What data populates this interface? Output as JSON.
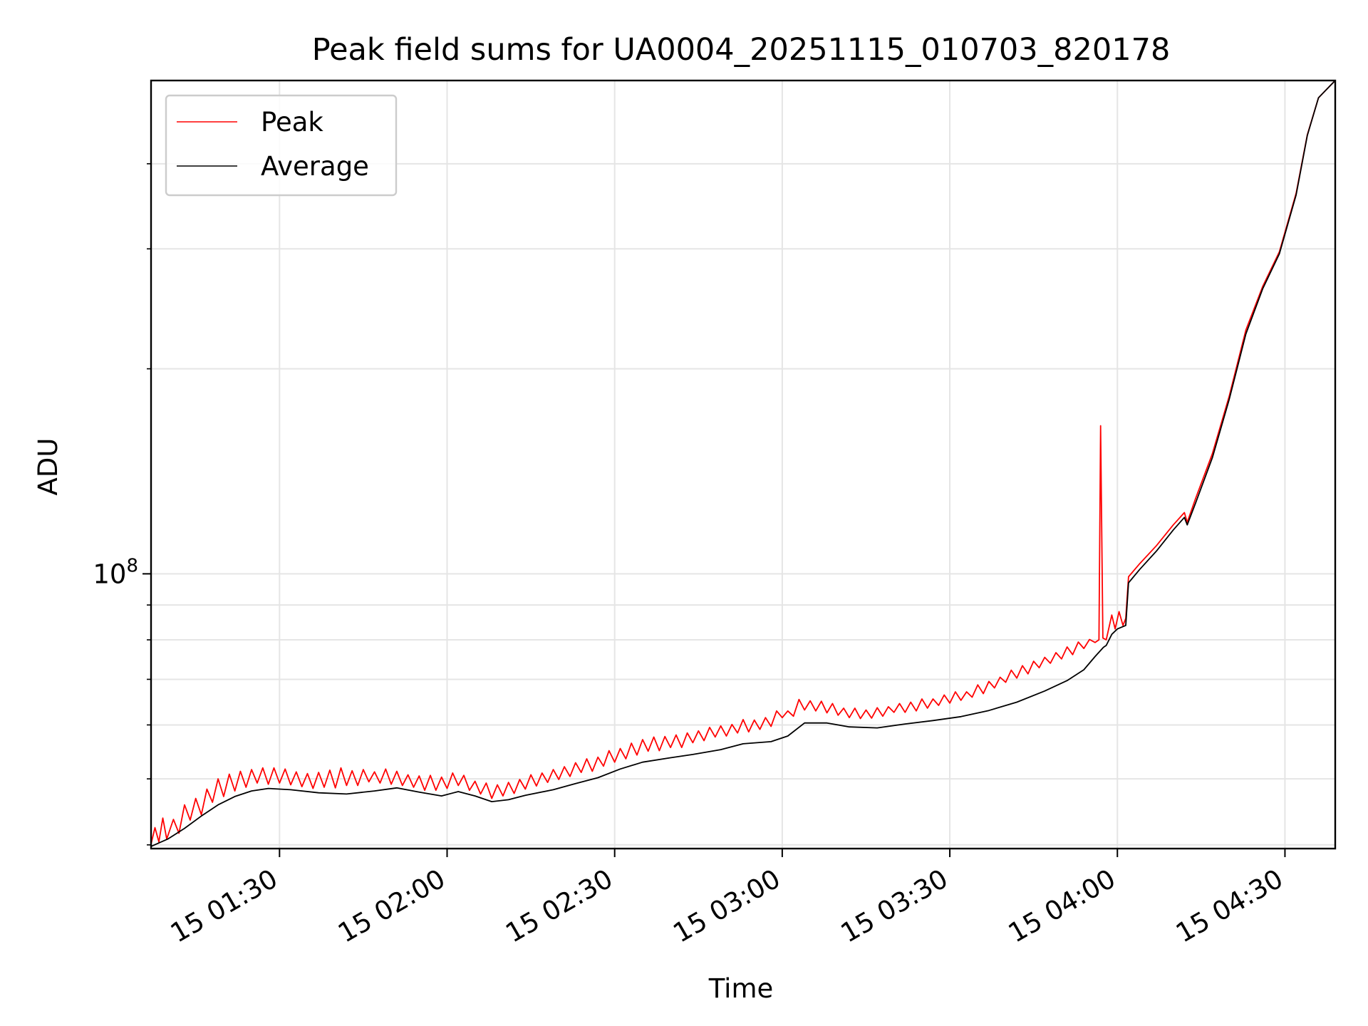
{
  "chart_data": {
    "type": "line",
    "title": "Peak field sums for UA0004_20251115_010703_820178",
    "xlabel": "Time",
    "ylabel": "ADU",
    "y_scale": "log",
    "x_unit": "minutes since 15 01:07",
    "xlim": [
      0,
      212
    ],
    "ylim_approx": [
      39500000,
      530000000
    ],
    "x_tick_values": [
      23,
      53,
      83,
      113,
      143,
      173,
      203
    ],
    "x_tick_labels": [
      "15 01:30",
      "15 02:00",
      "15 02:30",
      "15 03:00",
      "15 03:30",
      "15 04:00",
      "15 04:30"
    ],
    "y_major_ticks": [
      {
        "value": 100000000,
        "mantissa": "10",
        "exponent": "8"
      }
    ],
    "y_minor_gridlines": [
      40000000,
      50000000,
      60000000,
      70000000,
      80000000,
      90000000,
      200000000,
      300000000,
      400000000
    ],
    "grid": true,
    "legend": {
      "position": "upper-left",
      "entries": [
        {
          "label": "Peak",
          "color": "#ff0000"
        },
        {
          "label": "Average",
          "color": "#000000"
        }
      ]
    },
    "series": [
      {
        "name": "Average",
        "color": "#000000",
        "points": [
          [
            0,
            39800000
          ],
          [
            3,
            40800000
          ],
          [
            6,
            42300000
          ],
          [
            9,
            44100000
          ],
          [
            12,
            45800000
          ],
          [
            15,
            47100000
          ],
          [
            18,
            48000000
          ],
          [
            21,
            48400000
          ],
          [
            25,
            48200000
          ],
          [
            30,
            47700000
          ],
          [
            35,
            47500000
          ],
          [
            40,
            48000000
          ],
          [
            44,
            48500000
          ],
          [
            48,
            47800000
          ],
          [
            52,
            47200000
          ],
          [
            55,
            47900000
          ],
          [
            58,
            47200000
          ],
          [
            61,
            46300000
          ],
          [
            64,
            46600000
          ],
          [
            67,
            47300000
          ],
          [
            72,
            48200000
          ],
          [
            76,
            49200000
          ],
          [
            80,
            50200000
          ],
          [
            84,
            51700000
          ],
          [
            88,
            52900000
          ],
          [
            93,
            53700000
          ],
          [
            97,
            54300000
          ],
          [
            102,
            55200000
          ],
          [
            106,
            56300000
          ],
          [
            111,
            56700000
          ],
          [
            114,
            57800000
          ],
          [
            117,
            60400000
          ],
          [
            121,
            60400000
          ],
          [
            125,
            59600000
          ],
          [
            130,
            59400000
          ],
          [
            135,
            60200000
          ],
          [
            140,
            60900000
          ],
          [
            145,
            61700000
          ],
          [
            150,
            63000000
          ],
          [
            155,
            64800000
          ],
          [
            160,
            67300000
          ],
          [
            164,
            69700000
          ],
          [
            167,
            72300000
          ],
          [
            169,
            75600000
          ],
          [
            170.5,
            78000000
          ],
          [
            171,
            78500000
          ],
          [
            172,
            81500000
          ],
          [
            173,
            83000000
          ],
          [
            174.5,
            84000000
          ],
          [
            175,
            97000000
          ],
          [
            177,
            101500000
          ],
          [
            180,
            108000000
          ],
          [
            183,
            116000000
          ],
          [
            185,
            121000000
          ],
          [
            185.5,
            118000000
          ],
          [
            187,
            127000000
          ],
          [
            190,
            148000000
          ],
          [
            193,
            180000000
          ],
          [
            196,
            225000000
          ],
          [
            199,
            262000000
          ],
          [
            202,
            295000000
          ],
          [
            205,
            360000000
          ],
          [
            207,
            440000000
          ],
          [
            209,
            500000000
          ],
          [
            212,
            530000000
          ]
        ]
      },
      {
        "name": "Peak",
        "color": "#ff0000",
        "points": [
          [
            0,
            40100000
          ],
          [
            0.7,
            42400000
          ],
          [
            1.4,
            40400000
          ],
          [
            2.1,
            43800000
          ],
          [
            2.8,
            40800000
          ],
          [
            4,
            43600000
          ],
          [
            5,
            41600000
          ],
          [
            6,
            45800000
          ],
          [
            7,
            43500000
          ],
          [
            8,
            46800000
          ],
          [
            9,
            44300000
          ],
          [
            10,
            48300000
          ],
          [
            11,
            46200000
          ],
          [
            12,
            50000000
          ],
          [
            13,
            47100000
          ],
          [
            14,
            50800000
          ],
          [
            15,
            48000000
          ],
          [
            16,
            51300000
          ],
          [
            17,
            48600000
          ],
          [
            18,
            51600000
          ],
          [
            19,
            49300000
          ],
          [
            20,
            51900000
          ],
          [
            21,
            49100000
          ],
          [
            22,
            51900000
          ],
          [
            23,
            49300000
          ],
          [
            24,
            51700000
          ],
          [
            25,
            49000000
          ],
          [
            26,
            51200000
          ],
          [
            27,
            48700000
          ],
          [
            28,
            50900000
          ],
          [
            29,
            48400000
          ],
          [
            30,
            51100000
          ],
          [
            31,
            48600000
          ],
          [
            32,
            51500000
          ],
          [
            33,
            48500000
          ],
          [
            34,
            51900000
          ],
          [
            35,
            48900000
          ],
          [
            36,
            51400000
          ],
          [
            37,
            48900000
          ],
          [
            38,
            51600000
          ],
          [
            39,
            49500000
          ],
          [
            40,
            51200000
          ],
          [
            41,
            49300000
          ],
          [
            42,
            51700000
          ],
          [
            43,
            49100000
          ],
          [
            44,
            51300000
          ],
          [
            45,
            48900000
          ],
          [
            46,
            50700000
          ],
          [
            47,
            48600000
          ],
          [
            48,
            50500000
          ],
          [
            49,
            48100000
          ],
          [
            50,
            50600000
          ],
          [
            51,
            48100000
          ],
          [
            52,
            50300000
          ],
          [
            53,
            48400000
          ],
          [
            54,
            51000000
          ],
          [
            55,
            48900000
          ],
          [
            56,
            50600000
          ],
          [
            57,
            48100000
          ],
          [
            58,
            49600000
          ],
          [
            59,
            47500000
          ],
          [
            60,
            49300000
          ],
          [
            61,
            46800000
          ],
          [
            62,
            49000000
          ],
          [
            63,
            47200000
          ],
          [
            64,
            49400000
          ],
          [
            65,
            47600000
          ],
          [
            66,
            49900000
          ],
          [
            67,
            48300000
          ],
          [
            68,
            50700000
          ],
          [
            69,
            48800000
          ],
          [
            70,
            51000000
          ],
          [
            71,
            49400000
          ],
          [
            72,
            51600000
          ],
          [
            73,
            49900000
          ],
          [
            74,
            52100000
          ],
          [
            75,
            50400000
          ],
          [
            76,
            52800000
          ],
          [
            77,
            51100000
          ],
          [
            78,
            53500000
          ],
          [
            79,
            51300000
          ],
          [
            80,
            53800000
          ],
          [
            81,
            52200000
          ],
          [
            82,
            55000000
          ],
          [
            83,
            52900000
          ],
          [
            84,
            55400000
          ],
          [
            85,
            53500000
          ],
          [
            86,
            56400000
          ],
          [
            87,
            54200000
          ],
          [
            88,
            57100000
          ],
          [
            89,
            54900000
          ],
          [
            90,
            57600000
          ],
          [
            91,
            55000000
          ],
          [
            92,
            57700000
          ],
          [
            93,
            55600000
          ],
          [
            94,
            58000000
          ],
          [
            95,
            55600000
          ],
          [
            96,
            58400000
          ],
          [
            97,
            56500000
          ],
          [
            98,
            58800000
          ],
          [
            99,
            56900000
          ],
          [
            100,
            59500000
          ],
          [
            101,
            57600000
          ],
          [
            102,
            59800000
          ],
          [
            103,
            57800000
          ],
          [
            104,
            60100000
          ],
          [
            105,
            58400000
          ],
          [
            106,
            61100000
          ],
          [
            107,
            58600000
          ],
          [
            108,
            61000000
          ],
          [
            109,
            59100000
          ],
          [
            110,
            61500000
          ],
          [
            111,
            59700000
          ],
          [
            112,
            62900000
          ],
          [
            113,
            61500000
          ],
          [
            114,
            62900000
          ],
          [
            115,
            61800000
          ],
          [
            116,
            65400000
          ],
          [
            117,
            63100000
          ],
          [
            118,
            65100000
          ],
          [
            119,
            62900000
          ],
          [
            120,
            65000000
          ],
          [
            121,
            62500000
          ],
          [
            122,
            64500000
          ],
          [
            123,
            62000000
          ],
          [
            124,
            63500000
          ],
          [
            125,
            61500000
          ],
          [
            126,
            63500000
          ],
          [
            127,
            61300000
          ],
          [
            128,
            63100000
          ],
          [
            129,
            61400000
          ],
          [
            130,
            63600000
          ],
          [
            131,
            61800000
          ],
          [
            132,
            63800000
          ],
          [
            133,
            62600000
          ],
          [
            134,
            64500000
          ],
          [
            135,
            62600000
          ],
          [
            136,
            64800000
          ],
          [
            137,
            62900000
          ],
          [
            138,
            65500000
          ],
          [
            139,
            63500000
          ],
          [
            140,
            65500000
          ],
          [
            141,
            64100000
          ],
          [
            142,
            66400000
          ],
          [
            143,
            64600000
          ],
          [
            144,
            67100000
          ],
          [
            145,
            65200000
          ],
          [
            146,
            67100000
          ],
          [
            147,
            65900000
          ],
          [
            148,
            68700000
          ],
          [
            149,
            66700000
          ],
          [
            150,
            69500000
          ],
          [
            151,
            68000000
          ],
          [
            152,
            70500000
          ],
          [
            153,
            69300000
          ],
          [
            154,
            72200000
          ],
          [
            155,
            70300000
          ],
          [
            156,
            73300000
          ],
          [
            157,
            71300000
          ],
          [
            158,
            74400000
          ],
          [
            159,
            72800000
          ],
          [
            160,
            75400000
          ],
          [
            161,
            73900000
          ],
          [
            162,
            76600000
          ],
          [
            163,
            75000000
          ],
          [
            164,
            78100000
          ],
          [
            165,
            76100000
          ],
          [
            166,
            79400000
          ],
          [
            167,
            77700000
          ],
          [
            168,
            80100000
          ],
          [
            169,
            79300000
          ],
          [
            169.7,
            80000000
          ],
          [
            170,
            165000000
          ],
          [
            170.4,
            80500000
          ],
          [
            171,
            80000000
          ],
          [
            172,
            87000000
          ],
          [
            172.6,
            83000000
          ],
          [
            173.3,
            88000000
          ],
          [
            174,
            84000000
          ],
          [
            174.5,
            86000000
          ],
          [
            175,
            99000000
          ],
          [
            177,
            103500000
          ],
          [
            180,
            110000000
          ],
          [
            183,
            118000000
          ],
          [
            185,
            123000000
          ],
          [
            185.5,
            119000000
          ],
          [
            187,
            129000000
          ],
          [
            190,
            150000000
          ],
          [
            193,
            182000000
          ],
          [
            196,
            228000000
          ],
          [
            199,
            264000000
          ],
          [
            202,
            297000000
          ],
          [
            205,
            362000000
          ],
          [
            207,
            441000000
          ],
          [
            209,
            500000000
          ],
          [
            212,
            530000000
          ]
        ]
      }
    ]
  }
}
